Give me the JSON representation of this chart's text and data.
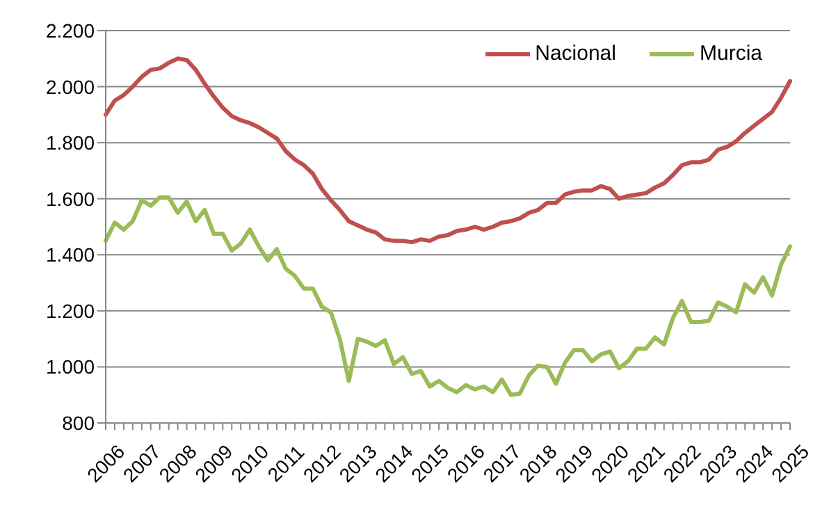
{
  "chart_data": {
    "type": "line",
    "categories": [
      "2006",
      null,
      null,
      null,
      "2007",
      null,
      null,
      null,
      "2008",
      null,
      null,
      null,
      "2009",
      null,
      null,
      null,
      "2010",
      null,
      null,
      null,
      "2011",
      null,
      null,
      null,
      "2012",
      null,
      null,
      null,
      "2013",
      null,
      null,
      null,
      "2014",
      null,
      null,
      null,
      "2015",
      null,
      null,
      null,
      "2016",
      null,
      null,
      null,
      "2017",
      null,
      null,
      null,
      "2018",
      null,
      null,
      null,
      "2019",
      null,
      null,
      null,
      "2020",
      null,
      null,
      null,
      "2021",
      null,
      null,
      null,
      "2022",
      null,
      null,
      null,
      "2023",
      null,
      null,
      null,
      "2024",
      null,
      null,
      null,
      "2025"
    ],
    "series": [
      {
        "name": "Nacional",
        "color": "#c0504d",
        "values": [
          1900,
          1950,
          1970,
          2000,
          2035,
          2060,
          2065,
          2085,
          2100,
          2095,
          2060,
          2010,
          1965,
          1925,
          1895,
          1880,
          1870,
          1855,
          1835,
          1815,
          1770,
          1740,
          1720,
          1690,
          1635,
          1595,
          1560,
          1520,
          1505,
          1490,
          1480,
          1455,
          1450,
          1450,
          1445,
          1455,
          1450,
          1465,
          1470,
          1485,
          1490,
          1500,
          1490,
          1500,
          1515,
          1520,
          1530,
          1550,
          1560,
          1585,
          1585,
          1615,
          1625,
          1630,
          1630,
          1645,
          1635,
          1600,
          1610,
          1615,
          1620,
          1640,
          1655,
          1685,
          1720,
          1730,
          1730,
          1740,
          1775,
          1785,
          1805,
          1835,
          1860,
          1885,
          1910,
          1960,
          2020
        ]
      },
      {
        "name": "Murcia",
        "color": "#9bbb59",
        "values": [
          1450,
          1515,
          1490,
          1520,
          1595,
          1575,
          1605,
          1605,
          1550,
          1590,
          1520,
          1560,
          1475,
          1475,
          1415,
          1440,
          1490,
          1430,
          1380,
          1420,
          1350,
          1325,
          1280,
          1280,
          1215,
          1195,
          1100,
          950,
          1100,
          1090,
          1075,
          1095,
          1010,
          1035,
          975,
          985,
          930,
          950,
          925,
          910,
          935,
          920,
          930,
          910,
          955,
          900,
          905,
          970,
          1005,
          1000,
          940,
          1015,
          1060,
          1060,
          1020,
          1045,
          1055,
          995,
          1020,
          1065,
          1065,
          1105,
          1080,
          1175,
          1235,
          1160,
          1160,
          1165,
          1230,
          1215,
          1195,
          1295,
          1265,
          1320,
          1255,
          1365,
          1430
        ]
      }
    ],
    "ylim": [
      800,
      2200
    ],
    "yticks": [
      {
        "value": 800,
        "label": "800"
      },
      {
        "value": 1000,
        "label": "1.000"
      },
      {
        "value": 1200,
        "label": "1.200"
      },
      {
        "value": 1400,
        "label": "1.400"
      },
      {
        "value": 1600,
        "label": "1.600"
      },
      {
        "value": 1800,
        "label": "1.800"
      },
      {
        "value": 2000,
        "label": "2.000"
      },
      {
        "value": 2200,
        "label": "2.200"
      }
    ],
    "grid": "y",
    "legend": "top right",
    "marker": "none",
    "line_style": "solid"
  }
}
